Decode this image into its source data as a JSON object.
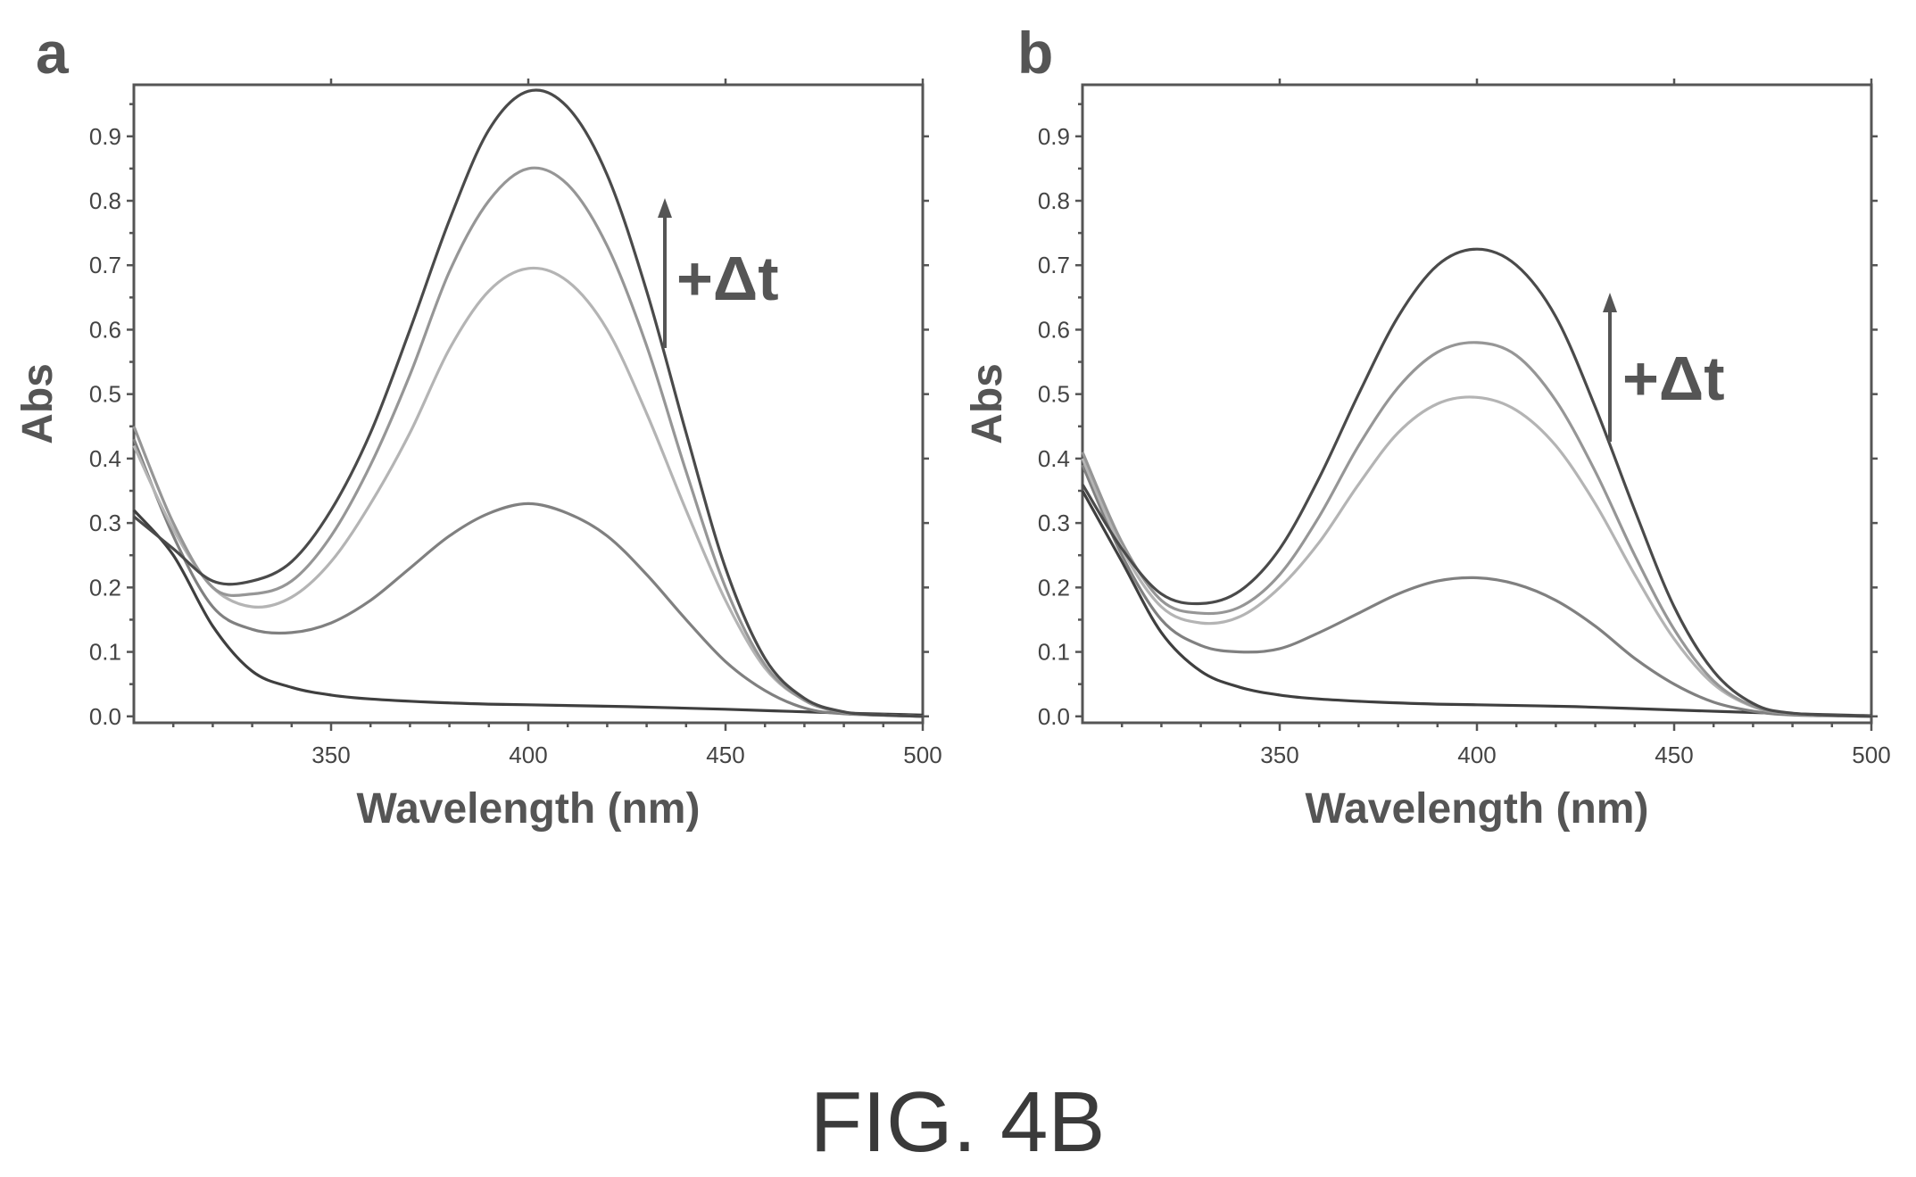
{
  "caption": "FIG. 4B",
  "chart_data": [
    {
      "panel": "a",
      "type": "line",
      "xlabel": "Wavelength (nm)",
      "ylabel": "Abs",
      "xlim": [
        300,
        500
      ],
      "ylim": [
        -0.01,
        0.98
      ],
      "xticks": [
        350,
        400,
        450,
        500
      ],
      "yticks": [
        0.0,
        0.1,
        0.2,
        0.3,
        0.4,
        0.5,
        0.6,
        0.7,
        0.8,
        0.9
      ],
      "annotation": "+Δt",
      "grid": false,
      "series": [
        {
          "color": "#3f3f3f",
          "points": [
            [
              300,
              0.32
            ],
            [
              310,
              0.25
            ],
            [
              320,
              0.14
            ],
            [
              330,
              0.07
            ],
            [
              340,
              0.045
            ],
            [
              350,
              0.033
            ],
            [
              360,
              0.027
            ],
            [
              375,
              0.022
            ],
            [
              390,
              0.019
            ],
            [
              400,
              0.018
            ],
            [
              425,
              0.015
            ],
            [
              450,
              0.011
            ],
            [
              475,
              0.006
            ],
            [
              500,
              0.002
            ]
          ]
        },
        {
          "color": "#808080",
          "points": [
            [
              300,
              0.43
            ],
            [
              310,
              0.28
            ],
            [
              320,
              0.17
            ],
            [
              330,
              0.135
            ],
            [
              340,
              0.13
            ],
            [
              350,
              0.145
            ],
            [
              360,
              0.18
            ],
            [
              370,
              0.23
            ],
            [
              380,
              0.28
            ],
            [
              390,
              0.315
            ],
            [
              400,
              0.33
            ],
            [
              410,
              0.315
            ],
            [
              420,
              0.28
            ],
            [
              430,
              0.22
            ],
            [
              440,
              0.15
            ],
            [
              450,
              0.085
            ],
            [
              460,
              0.04
            ],
            [
              470,
              0.013
            ],
            [
              480,
              0.004
            ],
            [
              500,
              0.0
            ]
          ]
        },
        {
          "color": "#b4b4b4",
          "points": [
            [
              300,
              0.42
            ],
            [
              310,
              0.29
            ],
            [
              320,
              0.2
            ],
            [
              330,
              0.17
            ],
            [
              340,
              0.185
            ],
            [
              350,
              0.24
            ],
            [
              360,
              0.33
            ],
            [
              370,
              0.44
            ],
            [
              380,
              0.57
            ],
            [
              390,
              0.66
            ],
            [
              400,
              0.695
            ],
            [
              410,
              0.675
            ],
            [
              420,
              0.6
            ],
            [
              430,
              0.47
            ],
            [
              440,
              0.32
            ],
            [
              450,
              0.18
            ],
            [
              460,
              0.075
            ],
            [
              470,
              0.025
            ],
            [
              480,
              0.006
            ],
            [
              490,
              0.002
            ],
            [
              500,
              0.0
            ]
          ]
        },
        {
          "color": "#969696",
          "points": [
            [
              300,
              0.45
            ],
            [
              310,
              0.3
            ],
            [
              320,
              0.2
            ],
            [
              330,
              0.19
            ],
            [
              340,
              0.21
            ],
            [
              350,
              0.28
            ],
            [
              360,
              0.39
            ],
            [
              370,
              0.53
            ],
            [
              380,
              0.69
            ],
            [
              390,
              0.8
            ],
            [
              400,
              0.85
            ],
            [
              410,
              0.825
            ],
            [
              420,
              0.73
            ],
            [
              430,
              0.575
            ],
            [
              440,
              0.38
            ],
            [
              450,
              0.2
            ],
            [
              460,
              0.08
            ],
            [
              470,
              0.025
            ],
            [
              480,
              0.006
            ],
            [
              490,
              0.002
            ],
            [
              500,
              0.0
            ]
          ]
        },
        {
          "color": "#4a4a4a",
          "points": [
            [
              300,
              0.31
            ],
            [
              310,
              0.26
            ],
            [
              320,
              0.21
            ],
            [
              330,
              0.21
            ],
            [
              340,
              0.24
            ],
            [
              350,
              0.32
            ],
            [
              360,
              0.44
            ],
            [
              370,
              0.6
            ],
            [
              380,
              0.77
            ],
            [
              390,
              0.91
            ],
            [
              400,
              0.97
            ],
            [
              410,
              0.945
            ],
            [
              420,
              0.84
            ],
            [
              430,
              0.66
            ],
            [
              440,
              0.44
            ],
            [
              450,
              0.23
            ],
            [
              460,
              0.09
            ],
            [
              470,
              0.028
            ],
            [
              480,
              0.007
            ],
            [
              490,
              0.002
            ],
            [
              500,
              0.0
            ]
          ]
        }
      ]
    },
    {
      "panel": "b",
      "type": "line",
      "xlabel": "Wavelength (nm)",
      "ylabel": "Abs",
      "xlim": [
        300,
        500
      ],
      "ylim": [
        -0.01,
        0.98
      ],
      "xticks": [
        350,
        400,
        450,
        500
      ],
      "yticks": [
        0.0,
        0.1,
        0.2,
        0.3,
        0.4,
        0.5,
        0.6,
        0.7,
        0.8,
        0.9
      ],
      "annotation": "+Δt",
      "grid": false,
      "series": [
        {
          "color": "#3f3f3f",
          "points": [
            [
              300,
              0.35
            ],
            [
              310,
              0.24
            ],
            [
              320,
              0.13
            ],
            [
              330,
              0.07
            ],
            [
              340,
              0.045
            ],
            [
              350,
              0.033
            ],
            [
              360,
              0.027
            ],
            [
              375,
              0.022
            ],
            [
              390,
              0.019
            ],
            [
              400,
              0.018
            ],
            [
              425,
              0.015
            ],
            [
              450,
              0.01
            ],
            [
              475,
              0.005
            ],
            [
              500,
              0.001
            ]
          ]
        },
        {
          "color": "#808080",
          "points": [
            [
              300,
              0.39
            ],
            [
              310,
              0.25
            ],
            [
              320,
              0.15
            ],
            [
              330,
              0.11
            ],
            [
              340,
              0.1
            ],
            [
              350,
              0.105
            ],
            [
              360,
              0.13
            ],
            [
              370,
              0.16
            ],
            [
              380,
              0.19
            ],
            [
              390,
              0.21
            ],
            [
              400,
              0.215
            ],
            [
              410,
              0.205
            ],
            [
              420,
              0.18
            ],
            [
              430,
              0.14
            ],
            [
              440,
              0.09
            ],
            [
              450,
              0.05
            ],
            [
              460,
              0.022
            ],
            [
              470,
              0.008
            ],
            [
              480,
              0.002
            ],
            [
              500,
              0.0
            ]
          ]
        },
        {
          "color": "#b4b4b4",
          "points": [
            [
              300,
              0.4
            ],
            [
              310,
              0.26
            ],
            [
              320,
              0.17
            ],
            [
              330,
              0.145
            ],
            [
              340,
              0.155
            ],
            [
              350,
              0.2
            ],
            [
              360,
              0.27
            ],
            [
              370,
              0.36
            ],
            [
              380,
              0.44
            ],
            [
              390,
              0.485
            ],
            [
              400,
              0.495
            ],
            [
              410,
              0.475
            ],
            [
              420,
              0.42
            ],
            [
              430,
              0.33
            ],
            [
              440,
              0.22
            ],
            [
              450,
              0.12
            ],
            [
              460,
              0.05
            ],
            [
              470,
              0.015
            ],
            [
              480,
              0.004
            ],
            [
              500,
              0.0
            ]
          ]
        },
        {
          "color": "#969696",
          "points": [
            [
              300,
              0.41
            ],
            [
              310,
              0.27
            ],
            [
              320,
              0.18
            ],
            [
              330,
              0.16
            ],
            [
              340,
              0.17
            ],
            [
              350,
              0.22
            ],
            [
              360,
              0.31
            ],
            [
              370,
              0.42
            ],
            [
              380,
              0.51
            ],
            [
              390,
              0.565
            ],
            [
              400,
              0.58
            ],
            [
              410,
              0.56
            ],
            [
              420,
              0.49
            ],
            [
              430,
              0.38
            ],
            [
              440,
              0.25
            ],
            [
              450,
              0.135
            ],
            [
              460,
              0.055
            ],
            [
              470,
              0.016
            ],
            [
              480,
              0.004
            ],
            [
              500,
              0.0
            ]
          ]
        },
        {
          "color": "#4a4a4a",
          "points": [
            [
              300,
              0.36
            ],
            [
              310,
              0.26
            ],
            [
              320,
              0.19
            ],
            [
              330,
              0.175
            ],
            [
              340,
              0.195
            ],
            [
              350,
              0.26
            ],
            [
              360,
              0.37
            ],
            [
              370,
              0.5
            ],
            [
              380,
              0.62
            ],
            [
              390,
              0.7
            ],
            [
              400,
              0.725
            ],
            [
              410,
              0.7
            ],
            [
              420,
              0.62
            ],
            [
              430,
              0.48
            ],
            [
              440,
              0.32
            ],
            [
              450,
              0.17
            ],
            [
              460,
              0.07
            ],
            [
              470,
              0.02
            ],
            [
              480,
              0.005
            ],
            [
              500,
              0.0
            ]
          ]
        }
      ]
    }
  ]
}
